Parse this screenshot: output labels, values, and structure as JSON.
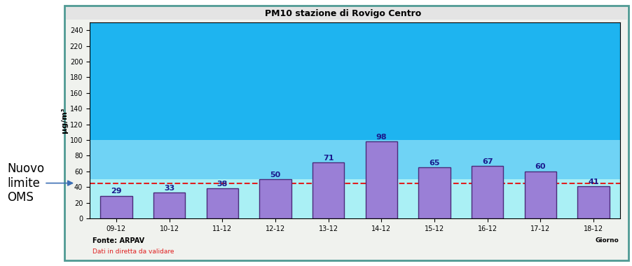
{
  "chart_data": {
    "type": "bar",
    "title": "PM10 stazione di Rovigo Centro",
    "y_label": "µg/m³",
    "x_label": "Giorno",
    "categories": [
      "09-12",
      "10-12",
      "11-12",
      "12-12",
      "13-12",
      "14-12",
      "15-12",
      "16-12",
      "17-12",
      "18-12"
    ],
    "values": [
      29,
      33,
      38,
      50,
      71,
      98,
      65,
      67,
      60,
      41
    ],
    "color": "#9a7fd6",
    "data_labels": true,
    "ylim": [
      0,
      250
    ],
    "yticks": [
      0,
      20,
      40,
      60,
      80,
      100,
      120,
      140,
      160,
      180,
      200,
      220,
      240
    ],
    "grid": false,
    "bands": [
      {
        "from": 0,
        "to": 50,
        "color": "#aaf0f5"
      },
      {
        "from": 50,
        "to": 100,
        "color": "#6fd3f5"
      },
      {
        "from": 100,
        "to": 250,
        "color": "#1eb4f0"
      }
    ],
    "reference_line": {
      "value": 45,
      "label": "Nuovo\nlimite\nOMS",
      "color": "#e02020",
      "line_style": "dashed"
    },
    "source": "Fonte: ARPAV",
    "note": "Dati in diretta da validare"
  }
}
